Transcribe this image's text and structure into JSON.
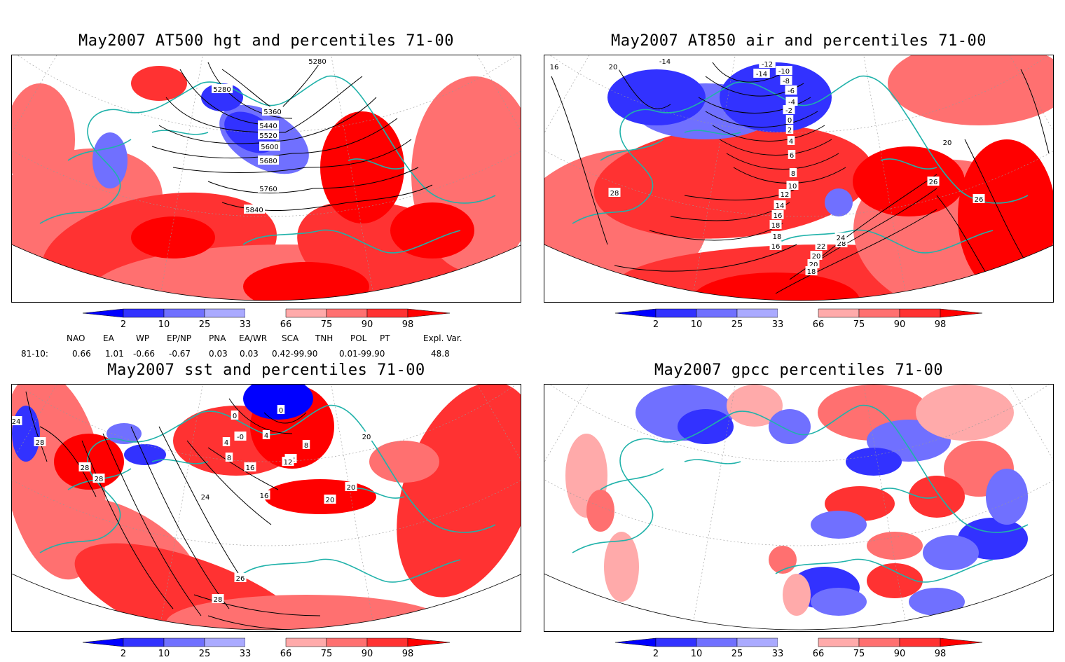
{
  "panels": [
    {
      "id": "hgt",
      "title": "May2007 AT500 hgt and percentiles 71-00",
      "contours": [
        "5280",
        "5280",
        "5360",
        "5440",
        "5520",
        "5600",
        "5680",
        "5760",
        "5840"
      ]
    },
    {
      "id": "air",
      "title": "May2007 AT850 air and percentiles 71-00",
      "contours": [
        "16",
        "20",
        "-14",
        "-14",
        "-12",
        "-10",
        "-8",
        "-6",
        "-4",
        "-2",
        "0",
        "2",
        "4",
        "6",
        "8",
        "10",
        "12",
        "14",
        "16",
        "18",
        "18",
        "16",
        "28",
        "28",
        "20",
        "26",
        "26",
        "24",
        "22",
        "20",
        "20",
        "18"
      ]
    },
    {
      "id": "sst",
      "title": "May2007 sst and percentiles 71-00",
      "contours": [
        "24",
        "28",
        "28",
        "28",
        "0",
        "0",
        "-0",
        "4",
        "4",
        "8",
        "12",
        "8",
        "12",
        "16",
        "16",
        "20",
        "20",
        "20",
        "24",
        "26",
        "28"
      ]
    },
    {
      "id": "gpcc",
      "title": "May2007 gpcc percentiles 71-00",
      "contours": []
    }
  ],
  "colorbar": {
    "ticks": [
      "2",
      "10",
      "25",
      "33",
      "66",
      "75",
      "90",
      "98"
    ],
    "colors": {
      "low": [
        "#0000ff",
        "#3232ff",
        "#7070ff",
        "#aaaaff"
      ],
      "high": [
        "#ffaaaa",
        "#ff7070",
        "#ff3232",
        "#ff0000"
      ]
    }
  },
  "indices": {
    "headers": [
      "NAO",
      "EA",
      "WP",
      "EP/NP",
      "PNA",
      "EA/WR",
      "SCA",
      "TNH",
      "POL",
      "PT",
      "Expl. Var."
    ],
    "row_label": "81-10:",
    "values": [
      "0.66",
      "1.01",
      "-0.66",
      "-0.67",
      "0.03",
      "0.03",
      "0.42-99.90",
      "0.01-99.90",
      "48.8"
    ]
  }
}
